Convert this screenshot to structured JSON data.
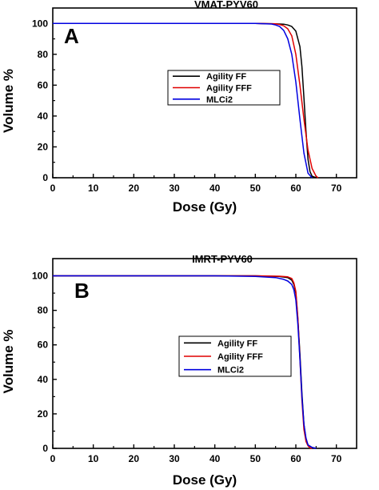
{
  "chart_data": [
    {
      "type": "line",
      "title": "VMAT-PYV60",
      "panel": "A",
      "xlabel": "Dose (Gy)",
      "ylabel": "Volume %",
      "xlim": [
        0,
        75
      ],
      "ylim": [
        0,
        110
      ],
      "xticks": [
        0,
        10,
        20,
        30,
        40,
        50,
        60,
        70
      ],
      "yticks": [
        0,
        20,
        40,
        60,
        80,
        100
      ],
      "legend_position": "center-right",
      "series": [
        {
          "name": "Agility FF",
          "color": "#000000",
          "x": [
            0,
            50,
            55,
            57,
            58,
            59,
            60,
            61,
            61.5,
            62,
            62.5,
            63,
            63.5,
            64,
            65
          ],
          "y": [
            100,
            100,
            99.8,
            99.5,
            99,
            98,
            95,
            85,
            72,
            52,
            30,
            12,
            4,
            1,
            0
          ]
        },
        {
          "name": "Agility FFF",
          "color": "#e00000",
          "x": [
            0,
            50,
            55,
            56,
            57,
            58,
            59,
            60,
            61,
            62,
            63,
            64,
            65,
            65.5
          ],
          "y": [
            100,
            100,
            99.8,
            99.3,
            98.5,
            96.5,
            92,
            80,
            60,
            38,
            18,
            6,
            1,
            0
          ]
        },
        {
          "name": "MLCi2",
          "color": "#0000e0",
          "x": [
            0,
            50,
            54,
            55,
            56,
            57,
            58,
            59,
            60,
            61,
            62,
            63,
            64
          ],
          "y": [
            100,
            100,
            99.6,
            99,
            98,
            95.5,
            90,
            80,
            62,
            38,
            16,
            3,
            0
          ]
        }
      ]
    },
    {
      "type": "line",
      "title": "IMRT-PYV60",
      "panel": "B",
      "xlabel": "Dose (Gy)",
      "ylabel": "Volume %",
      "xlim": [
        0,
        75
      ],
      "ylim": [
        0,
        110
      ],
      "xticks": [
        0,
        10,
        20,
        30,
        40,
        50,
        60,
        70
      ],
      "yticks": [
        0,
        20,
        40,
        60,
        80,
        100
      ],
      "legend_position": "center-right",
      "series": [
        {
          "name": "Agility FF",
          "color": "#000000",
          "x": [
            0,
            50,
            56,
            58,
            59,
            59.5,
            60,
            60.5,
            61,
            61.5,
            62,
            62.5,
            63,
            64,
            65
          ],
          "y": [
            100,
            100,
            99.6,
            99,
            97.5,
            95,
            90,
            75,
            55,
            32,
            14,
            5,
            2,
            0.5,
            0
          ]
        },
        {
          "name": "Agility FFF",
          "color": "#e00000",
          "x": [
            0,
            50,
            56,
            58,
            59,
            59.5,
            60,
            60.5,
            61,
            61.5,
            62,
            62.5,
            63,
            63.5,
            64
          ],
          "y": [
            100,
            100,
            99.8,
            99.4,
            98.5,
            96,
            91,
            76,
            52,
            28,
            11,
            4,
            1.5,
            0.3,
            0
          ]
        },
        {
          "name": "MLCi2",
          "color": "#0000e0",
          "x": [
            0,
            40,
            50,
            55,
            57,
            58,
            59,
            59.5,
            60,
            60.5,
            61,
            61.5,
            62,
            62.5,
            63,
            64,
            65
          ],
          "y": [
            100,
            100,
            99.7,
            99,
            98,
            97,
            95,
            92,
            86,
            72,
            52,
            30,
            14,
            6,
            2,
            0.5,
            0
          ]
        }
      ]
    }
  ]
}
